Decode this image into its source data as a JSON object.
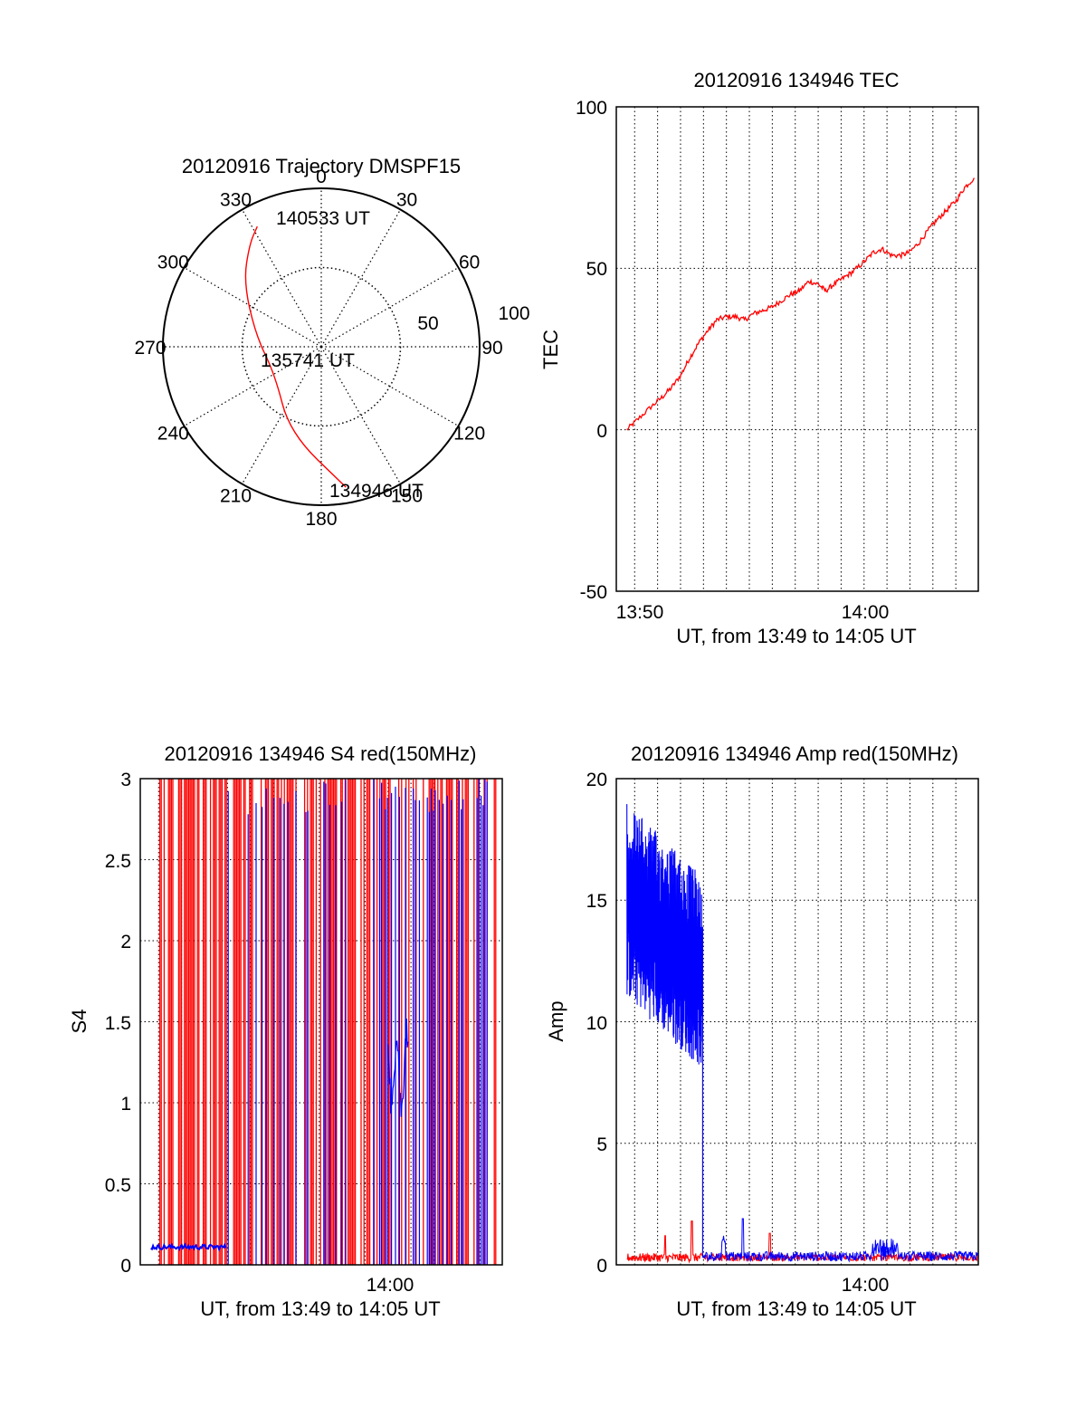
{
  "chart_data": [
    {
      "type": "polar",
      "title": "20120916 Trajectory DMSPF15",
      "angle_labels": [
        "0",
        "30",
        "60",
        "90",
        "120",
        "150",
        "180",
        "210",
        "240",
        "270",
        "300",
        "330"
      ],
      "radial_labels": [
        "50",
        "100"
      ],
      "radial_max": 100,
      "trajectory_color": "#ff0000",
      "trajectory_points": [
        {
          "az": 170,
          "r": 90
        },
        {
          "az": 200,
          "r": 58
        },
        {
          "az": 240,
          "r": 34
        },
        {
          "az": 280,
          "r": 42
        },
        {
          "az": 310,
          "r": 64
        },
        {
          "az": 325,
          "r": 79
        },
        {
          "az": 332,
          "r": 86
        }
      ],
      "annotations": [
        {
          "text": "140533 UT",
          "az": 335,
          "r": 87
        },
        {
          "text": "135741 UT",
          "az": 240,
          "r": 7
        },
        {
          "text": "134946 UT",
          "az": 168,
          "r": 90
        }
      ]
    },
    {
      "type": "line",
      "title": "20120916 134946 TEC",
      "xlabel": "UT, from 13:49 to 14:05 UT",
      "ylabel": "TEC",
      "xlim": [
        13.82,
        14.083
      ],
      "ylim": [
        -50,
        100
      ],
      "yticks": [
        "100",
        "50",
        "0",
        "-50"
      ],
      "xticks": [
        "13:50",
        "14:00"
      ],
      "grid": true,
      "series": [
        {
          "color": "#ff0000",
          "x": [
            13.8277,
            13.835,
            13.845,
            13.853,
            13.86,
            13.867,
            13.873,
            13.88,
            13.887,
            13.893,
            13.9,
            13.907,
            13.913,
            13.92,
            13.927,
            13.933,
            13.94,
            13.947,
            13.953,
            13.96,
            13.967,
            13.972,
            13.978,
            13.985,
            13.992,
            14.0,
            14.007,
            14.013,
            14.02,
            14.027,
            14.033,
            14.04,
            14.047,
            14.053,
            14.06,
            14.067,
            14.073,
            14.08
          ],
          "y": [
            0,
            3,
            7,
            10,
            13,
            17,
            22,
            27,
            31,
            34,
            35,
            35,
            34,
            36,
            37,
            38,
            40,
            42,
            43,
            46,
            45,
            43,
            45,
            47,
            49,
            52,
            55,
            56,
            54,
            54,
            55,
            58,
            62,
            65,
            68,
            71,
            75,
            78
          ]
        }
      ]
    },
    {
      "type": "line",
      "title": "20120916 134946 S4 red(150MHz)",
      "xlabel": "UT, from 13:49 to 14:05 UT",
      "ylabel": "S4",
      "xlim": [
        13.82,
        14.083
      ],
      "ylim": [
        0,
        3
      ],
      "yticks": [
        "3",
        "2.5",
        "2",
        "1.5",
        "1",
        "0.5",
        "0"
      ],
      "xticks": [
        "14:00"
      ],
      "grid": true,
      "series": [
        {
          "name": "red",
          "color": "#ff0000"
        },
        {
          "name": "blue",
          "color": "#0000ff",
          "baseline_x": [
            13.8277,
            13.8827
          ],
          "baseline_y": 0.11
        }
      ]
    },
    {
      "type": "line",
      "title": "20120916 134946 Amp red(150MHz)",
      "xlabel": "UT, from 13:49 to 14:05 UT",
      "ylabel": "Amp",
      "xlim": [
        13.82,
        14.083
      ],
      "ylim": [
        0,
        20
      ],
      "yticks": [
        "20",
        "15",
        "10",
        "5",
        "0"
      ],
      "xticks": [
        "14:00"
      ],
      "grid": true,
      "series": [
        {
          "name": "blue",
          "color": "#0000ff",
          "x_start": 13.8277,
          "x_end": 13.8827,
          "high_start": 19,
          "high_end": 16,
          "low_start": 11,
          "low_end": 8
        },
        {
          "name": "red",
          "color": "#ff0000",
          "baseline": 0.3
        }
      ]
    }
  ]
}
